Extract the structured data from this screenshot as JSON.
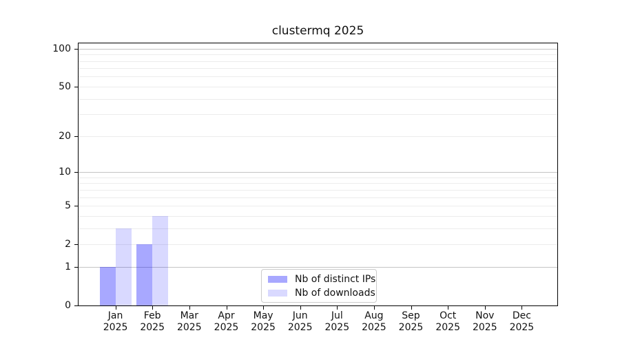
{
  "figure": {
    "title": "clustermq 2025"
  },
  "legend": {
    "items": [
      {
        "label": "Nb of distinct IPs",
        "color": "rgba(0,0,255,0.34)"
      },
      {
        "label": "Nb of downloads",
        "color": "rgba(0,0,255,0.15)"
      }
    ]
  },
  "chart_data": {
    "type": "bar",
    "title": "clustermq 2025",
    "categories": [
      "Jan",
      "Feb",
      "Mar",
      "Apr",
      "May",
      "Jun",
      "Jul",
      "Aug",
      "Sep",
      "Oct",
      "Nov",
      "Dec"
    ],
    "x_sub_label": "2025",
    "series": [
      {
        "name": "Nb of distinct IPs",
        "color": "rgba(0,0,255,0.34)",
        "values": [
          1,
          2,
          0,
          0,
          0,
          0,
          0,
          0,
          0,
          0,
          0,
          0
        ]
      },
      {
        "name": "Nb of downloads",
        "color": "rgba(0,0,255,0.15)",
        "values": [
          3,
          4,
          0,
          0,
          0,
          0,
          0,
          0,
          0,
          0,
          0,
          0
        ]
      }
    ],
    "xlabel": "",
    "ylabel": "",
    "yscale": "log1p",
    "ylim": [
      0,
      110
    ],
    "y_tick_labels": [
      0,
      1,
      2,
      5,
      10,
      20,
      50,
      100
    ],
    "y_grid_major": [
      1,
      10,
      100
    ],
    "y_grid_minor": [
      2,
      3,
      4,
      5,
      6,
      7,
      8,
      9,
      20,
      30,
      40,
      50,
      60,
      70,
      80,
      90
    ],
    "grid": "horizontal",
    "legend_position": "lower center",
    "colors": {
      "major_grid": "#c3c3c3",
      "minor_grid": "#ececec",
      "axis": "#000000",
      "text": "#111111"
    }
  }
}
